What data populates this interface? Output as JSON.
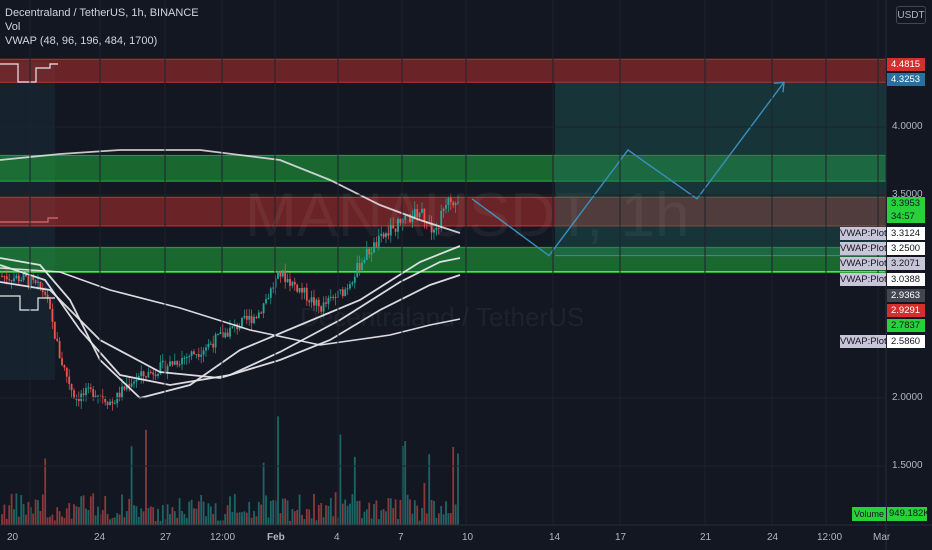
{
  "legend": {
    "title": "Decentraland / TetherUS, 1h, BINANCE",
    "vol": "Vol",
    "vwap": "VWAP (48, 96, 196, 484, 1700)"
  },
  "currency": "USDT",
  "watermark": {
    "symbol": "MANAUSDT, 1h",
    "name": "Decentraland / TetherUS"
  },
  "colors": {
    "bg": "#131722",
    "up": "#26a69a",
    "down": "#ef5350",
    "red_zone": "#b2302e",
    "green_zone": "#1f9d3a",
    "forecast": "#3a8fbf",
    "vwap": "#e6e6ea"
  },
  "chart_data": {
    "type": "candlestick",
    "y_ticks": [
      "4.0000",
      "3.5000",
      "2.0000",
      "1.5000"
    ],
    "x_ticks": [
      "20",
      "24",
      "27",
      "12:00",
      "Feb",
      "4",
      "7",
      "10",
      "14",
      "17",
      "21",
      "24",
      "12:00",
      "Mar"
    ],
    "price_labels": [
      {
        "value": "4.4815",
        "bg": "#d32f2f",
        "fg": "#ffffff"
      },
      {
        "value": "4.3253",
        "bg": "#2a6f9e",
        "fg": "#ffffff"
      },
      {
        "value": "3.3953",
        "bg": "#26d13a",
        "fg": "#131722"
      },
      {
        "value": "34:57",
        "bg": "#26d13a",
        "fg": "#131722"
      },
      {
        "value": "3.3124",
        "bg": "#ffffff",
        "fg": "#131722"
      },
      {
        "value": "3.2500",
        "bg": "#ffffff",
        "fg": "#131722"
      },
      {
        "value": "3.2071",
        "bg": "#c9c5d8",
        "fg": "#131722"
      },
      {
        "value": "3.0388",
        "bg": "#ffffff",
        "fg": "#131722"
      },
      {
        "value": "2.9363",
        "bg": "#434651",
        "fg": "#ffffff"
      },
      {
        "value": "2.9291",
        "bg": "#d32f2f",
        "fg": "#ffffff"
      },
      {
        "value": "2.7837",
        "bg": "#26d13a",
        "fg": "#131722"
      },
      {
        "value": "2.5860",
        "bg": "#ffffff",
        "fg": "#131722"
      }
    ],
    "vwap_tags": [
      "VWAP:Plot",
      "VWAP:Plot",
      "VWAP:Plot",
      "VWAP:Plot",
      "VWAP:Plot"
    ],
    "volume_label": "Volume",
    "volume_value": "949.182K",
    "zones": [
      {
        "kind": "resistance",
        "from": 4.33,
        "to": 4.5
      },
      {
        "kind": "support",
        "from": 3.6,
        "to": 3.79
      },
      {
        "kind": "resistance",
        "from": 3.27,
        "to": 3.48
      },
      {
        "kind": "support",
        "from": 2.93,
        "to": 3.11
      }
    ],
    "forecast_path": [
      {
        "time": "Feb 10",
        "price": 3.47
      },
      {
        "time": "Feb 14",
        "price": 3.05
      },
      {
        "time": "Feb 17",
        "price": 3.83
      },
      {
        "time": "Feb 21",
        "price": 3.47
      },
      {
        "time": "Feb 25",
        "price": 4.33
      }
    ],
    "target_box": {
      "from": "Feb 14",
      "to": "end",
      "low": 3.05,
      "high": 4.33
    },
    "last_price": 3.3953
  }
}
